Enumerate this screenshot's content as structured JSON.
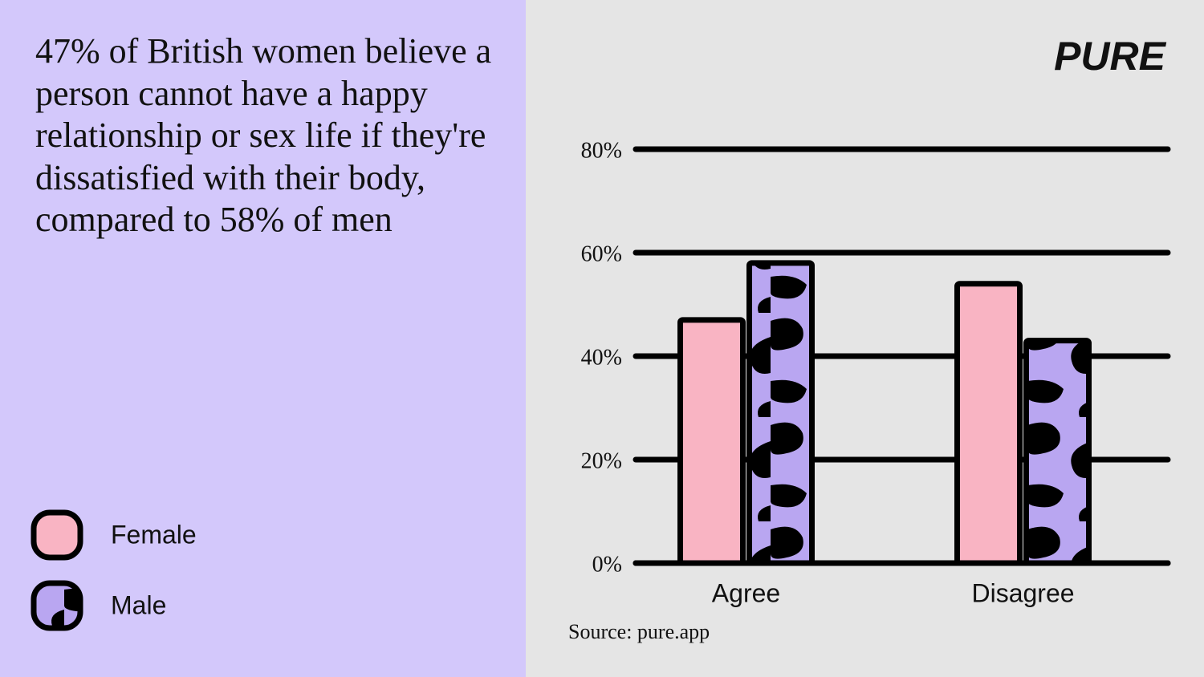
{
  "chart_data": {
    "type": "bar",
    "title": "47% of British women believe a person cannot have a happy relationship or sex life if they're dissatisfied with their body, compared to 58% of men",
    "brand": "PURE",
    "source": "Source: pure.app",
    "categories": [
      "Agree",
      "Disagree"
    ],
    "series": [
      {
        "name": "Female",
        "color": "#f9b4c3",
        "values": [
          47,
          54
        ]
      },
      {
        "name": "Male",
        "color": "#b9a6f1",
        "values": [
          58,
          43
        ]
      }
    ],
    "ylim": [
      0,
      80
    ],
    "yticks": [
      {
        "value": 0,
        "label": "0%"
      },
      {
        "value": 20,
        "label": "20%"
      },
      {
        "value": 40,
        "label": "40%"
      },
      {
        "value": 60,
        "label": "60%"
      },
      {
        "value": 80,
        "label": "80%"
      }
    ],
    "grid": true
  }
}
